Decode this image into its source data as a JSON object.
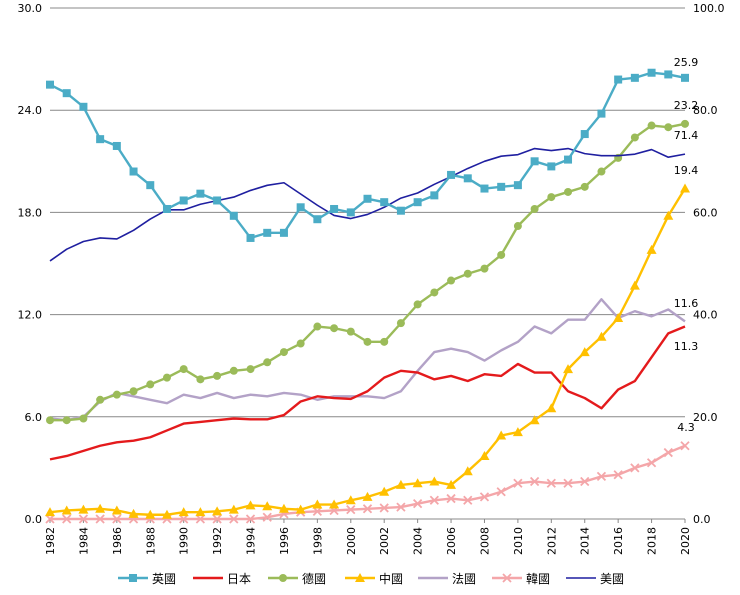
{
  "chart_data": {
    "type": "line",
    "title": "",
    "xlabel": "",
    "ylabel": "",
    "x": [
      1982,
      1983,
      1984,
      1985,
      1986,
      1987,
      1988,
      1989,
      1990,
      1991,
      1992,
      1993,
      1994,
      1995,
      1996,
      1997,
      1998,
      1999,
      2000,
      2001,
      2002,
      2003,
      2004,
      2005,
      2006,
      2007,
      2008,
      2009,
      2010,
      2011,
      2012,
      2013,
      2014,
      2015,
      2016,
      2017,
      2018,
      2019,
      2020
    ],
    "x_ticks": [
      "1982",
      "1984",
      "1986",
      "1988",
      "1990",
      "1992",
      "1994",
      "1996",
      "1998",
      "2000",
      "2002",
      "2004",
      "2006",
      "2008",
      "2010",
      "2012",
      "2014",
      "2016",
      "2018",
      "2020"
    ],
    "ylim_left": [
      0,
      30
    ],
    "ylim_right": [
      0,
      100
    ],
    "y_ticks_left": [
      "0.0",
      "6.0",
      "12.0",
      "18.0",
      "24.0",
      "30.0"
    ],
    "y_ticks_right": [
      "0.0",
      "20.0",
      "40.0",
      "60.0",
      "80.0",
      "100.0"
    ],
    "grid": true,
    "legend_position": "bottom",
    "series": [
      {
        "name": "英國",
        "color": "#4bacc6",
        "marker": "square",
        "axis": "left",
        "values": [
          25.5,
          25.0,
          24.2,
          22.3,
          21.9,
          20.4,
          19.6,
          18.2,
          18.7,
          19.1,
          18.7,
          17.8,
          16.5,
          16.8,
          16.8,
          18.3,
          17.6,
          18.2,
          18.0,
          18.8,
          18.6,
          18.1,
          18.6,
          19.0,
          20.2,
          20.0,
          19.4,
          19.5,
          19.6,
          21.0,
          20.7,
          21.1,
          22.6,
          23.8,
          25.8,
          25.9,
          26.2,
          26.1,
          25.9
        ],
        "end_label": "25.9"
      },
      {
        "name": "日本",
        "color": "#e41a1c",
        "marker": "none",
        "axis": "left",
        "values": [
          3.5,
          3.7,
          4.0,
          4.3,
          4.5,
          4.6,
          4.8,
          5.2,
          5.6,
          5.7,
          5.8,
          5.9,
          5.85,
          5.85,
          6.1,
          6.9,
          7.2,
          7.1,
          7.05,
          7.5,
          8.3,
          8.7,
          8.6,
          8.2,
          8.4,
          8.1,
          8.5,
          8.4,
          9.1,
          8.6,
          8.6,
          7.5,
          7.1,
          6.5,
          7.6,
          8.1,
          9.5,
          10.9,
          11.3
        ],
        "end_label": "11.3"
      },
      {
        "name": "德國",
        "color": "#9bbb59",
        "marker": "circle",
        "axis": "left",
        "values": [
          5.8,
          5.8,
          5.9,
          7.0,
          7.3,
          7.5,
          7.9,
          8.3,
          8.8,
          8.2,
          8.4,
          8.7,
          8.8,
          9.2,
          9.8,
          10.3,
          11.3,
          11.2,
          11.0,
          10.4,
          10.4,
          11.5,
          12.6,
          13.3,
          14.0,
          14.4,
          14.7,
          15.5,
          17.2,
          18.2,
          18.9,
          19.2,
          19.5,
          20.4,
          21.2,
          22.4,
          23.1,
          23.0,
          23.2
        ],
        "end_label": "23.2"
      },
      {
        "name": "中國",
        "color": "#ffc000",
        "marker": "triangle",
        "axis": "left",
        "values": [
          0.4,
          0.5,
          0.55,
          0.6,
          0.5,
          0.3,
          0.25,
          0.25,
          0.4,
          0.4,
          0.45,
          0.55,
          0.8,
          0.75,
          0.6,
          0.55,
          0.85,
          0.85,
          1.1,
          1.3,
          1.6,
          2.0,
          2.1,
          2.2,
          2.0,
          2.8,
          3.7,
          4.9,
          5.1,
          5.8,
          6.5,
          8.8,
          9.8,
          10.7,
          11.8,
          13.7,
          15.8,
          17.8,
          19.4
        ],
        "end_label": "19.4"
      },
      {
        "name": "法國",
        "color": "#b3a2c7",
        "marker": "none",
        "axis": "left",
        "values": [
          5.9,
          5.8,
          6.0,
          6.9,
          7.4,
          7.2,
          7.0,
          6.8,
          7.3,
          7.1,
          7.4,
          7.1,
          7.3,
          7.2,
          7.4,
          7.3,
          7.0,
          7.2,
          7.2,
          7.2,
          7.1,
          7.5,
          8.7,
          9.8,
          10.0,
          9.8,
          9.3,
          9.9,
          10.4,
          11.3,
          10.9,
          11.7,
          11.7,
          12.9,
          11.8,
          12.2,
          11.9,
          12.3,
          11.6
        ],
        "end_label": "11.6"
      },
      {
        "name": "韓國",
        "color": "#f4a6a9",
        "marker": "x",
        "axis": "left",
        "values": [
          0.0,
          0.0,
          0.0,
          0.0,
          0.0,
          0.0,
          0.0,
          0.0,
          0.0,
          0.0,
          0.0,
          0.0,
          0.0,
          0.1,
          0.3,
          0.4,
          0.45,
          0.5,
          0.55,
          0.6,
          0.65,
          0.7,
          0.9,
          1.1,
          1.2,
          1.1,
          1.3,
          1.6,
          2.1,
          2.2,
          2.1,
          2.1,
          2.2,
          2.5,
          2.6,
          3.0,
          3.3,
          3.9,
          4.3
        ],
        "end_label": "4.3"
      },
      {
        "name": "美國",
        "color": "#1f1fa0",
        "marker": "none",
        "axis": "right",
        "values": [
          50.5,
          52.8,
          54.3,
          55.0,
          54.8,
          56.5,
          58.7,
          60.5,
          60.5,
          61.6,
          62.3,
          63.0,
          64.3,
          65.3,
          65.8,
          63.6,
          61.4,
          59.4,
          58.8,
          59.6,
          61.0,
          62.8,
          63.8,
          65.5,
          67.0,
          68.6,
          70.0,
          71.0,
          71.3,
          72.5,
          72.1,
          72.5,
          71.5,
          71.1,
          71.1,
          71.4,
          72.3,
          70.8,
          71.4
        ],
        "end_label": "71.4"
      }
    ]
  }
}
